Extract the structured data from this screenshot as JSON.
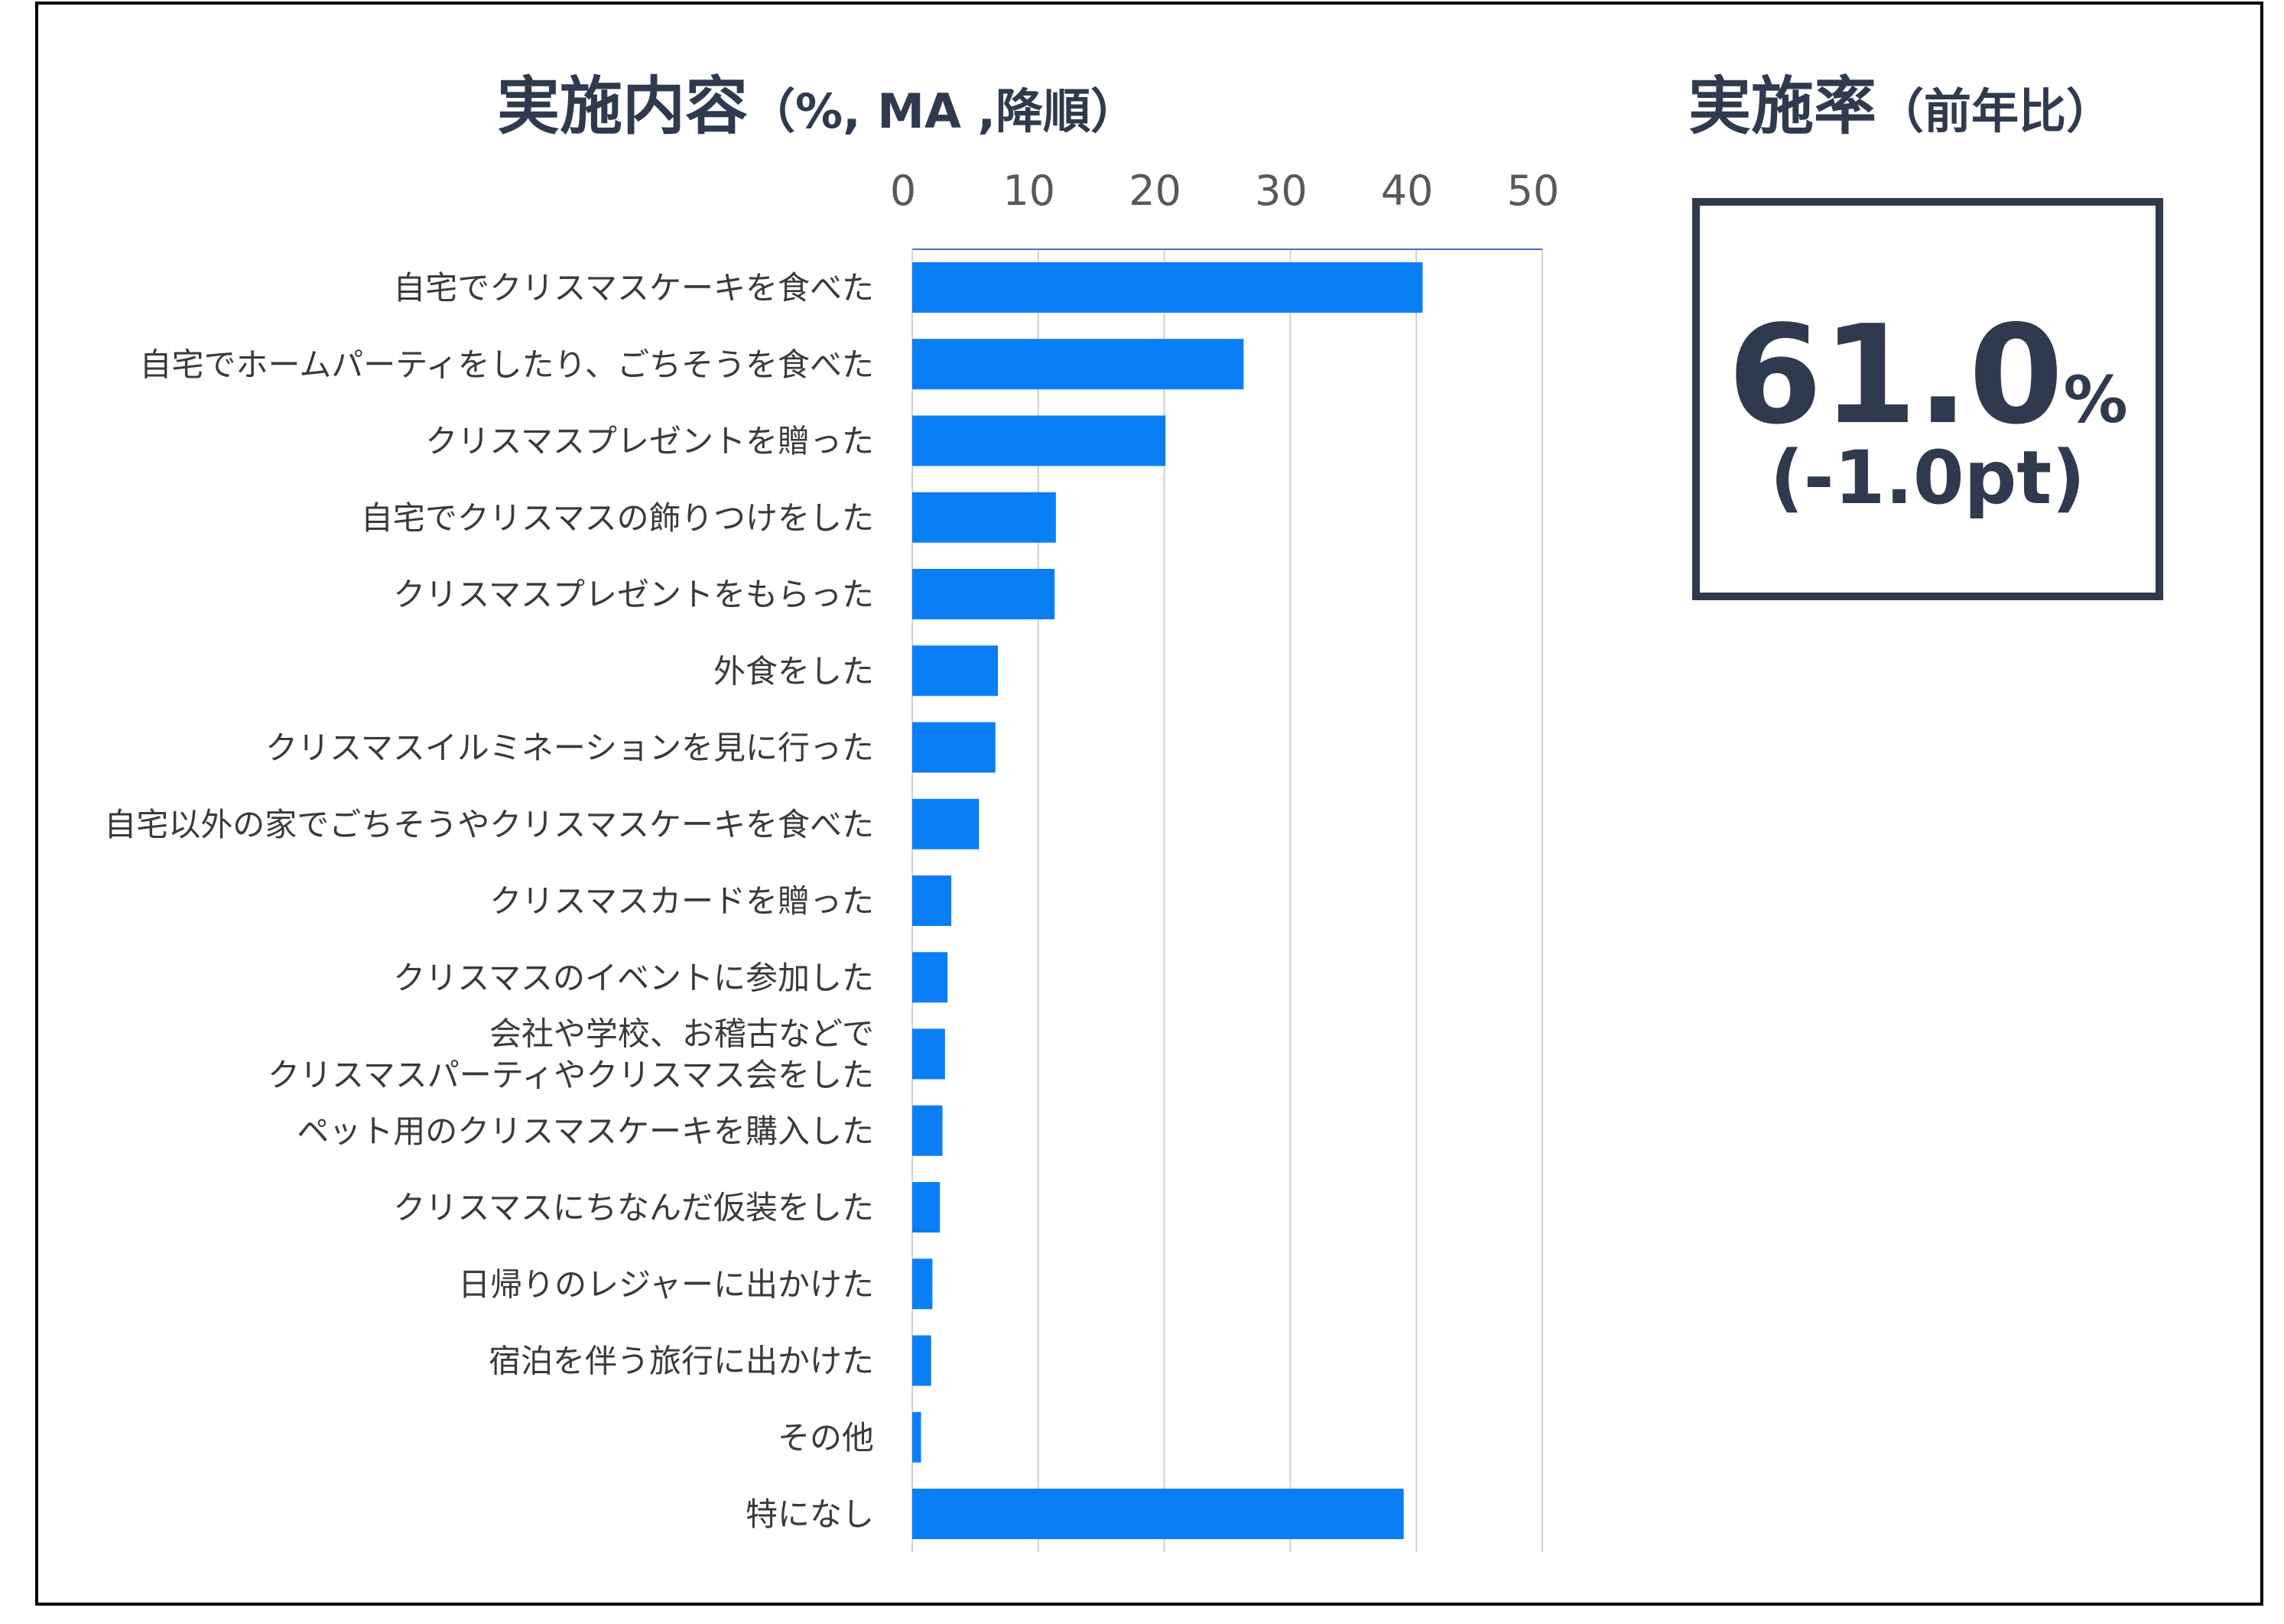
{
  "chart_title": {
    "main": "実施内容",
    "sub": "（%, MA ,降順）"
  },
  "rate_panel": {
    "title_main": "実施率",
    "title_sub": "（前年比）",
    "value": "61.0",
    "unit": "%",
    "diff": "(-1.0pt)"
  },
  "colors": {
    "bar": "#0a7ff5",
    "text": "#2f3a4f",
    "grid": "#d0d0d0",
    "axis": "#4472c4"
  },
  "chart_data": {
    "type": "bar",
    "orientation": "horizontal",
    "xlim": [
      0,
      50
    ],
    "ticks": [
      0,
      10,
      20,
      30,
      40,
      50
    ],
    "grid": true,
    "categories": [
      "自宅でクリスマスケーキを食べた",
      "自宅でホームパーティをしたり、ごちそうを食べた",
      "クリスマスプレゼントを贈った",
      "自宅でクリスマスの飾りつけをした",
      "クリスマスプレゼントをもらった",
      "外食をした",
      "クリスマスイルミネーションを見に行った",
      "自宅以外の家でごちそうやクリスマスケーキを食べた",
      "クリスマスカードを贈った",
      "クリスマスのイベントに参加した",
      "会社や学校、お稽古などで\nクリスマスパーティやクリスマス会をした",
      "ペット用のクリスマスケーキを購入した",
      "クリスマスにちなんだ仮装をした",
      "日帰りのレジャーに出かけた",
      "宿泊を伴う旅行に出かけた",
      "その他",
      "特になし"
    ],
    "values": [
      40.5,
      26.3,
      20.1,
      11.4,
      11.3,
      6.8,
      6.6,
      5.3,
      3.1,
      2.8,
      2.6,
      2.4,
      2.2,
      1.6,
      1.5,
      0.7,
      39.0
    ]
  }
}
